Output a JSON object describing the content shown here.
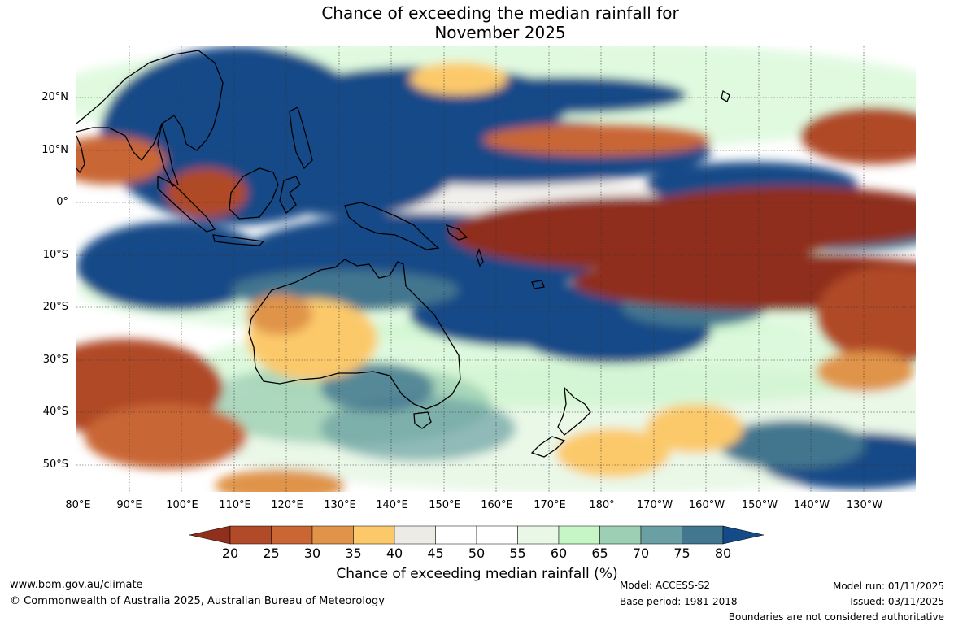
{
  "title": {
    "line1": "Chance of exceeding the median rainfall for",
    "line2": "November 2025"
  },
  "axes": {
    "latitude_labels": [
      "20°N",
      "10°N",
      "0°",
      "10°S",
      "20°S",
      "30°S",
      "40°S",
      "50°S"
    ],
    "longitude_labels": [
      "80°E",
      "90°E",
      "100°E",
      "110°E",
      "120°E",
      "130°E",
      "140°E",
      "150°E",
      "160°E",
      "170°E",
      "180°",
      "170°W",
      "160°W",
      "150°W",
      "140°W",
      "130°W"
    ]
  },
  "colorbar": {
    "title": "Chance of exceeding median rainfall (%)",
    "labels": [
      "20",
      "25",
      "30",
      "35",
      "40",
      "45",
      "50",
      "55",
      "60",
      "65",
      "70",
      "75",
      "80"
    ],
    "colors": {
      "below_20": "#8f2f1c",
      "20_25": "#b04a28",
      "25_30": "#c96634",
      "30_35": "#e0944a",
      "35_40": "#fcc96a",
      "40_45": "#edebe6",
      "45_50": "#ffffff",
      "50_55": "#ffffff",
      "55_60": "#e8f7e6",
      "60_65": "#c6f5c6",
      "65_70": "#9ccfb3",
      "70_75": "#6a9fa3",
      "75_80": "#43768f",
      "above_80": "#134a87"
    }
  },
  "footer": {
    "website": "www.bom.gov.au/climate",
    "copyright": "© Commonwealth of Australia 2025, Australian Bureau of Meteorology",
    "model": "Model: ACCESS-S2",
    "base_period": "Base period: 1981-2018",
    "model_run": "Model run: 01/11/2025",
    "issued": "Issued: 03/11/2025",
    "disclaimer": "Boundaries are not considered authoritative"
  }
}
